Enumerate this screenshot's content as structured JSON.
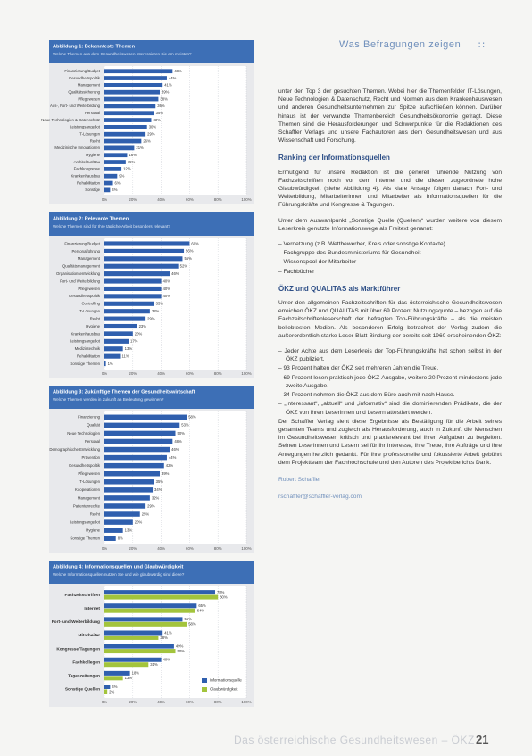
{
  "header": {
    "title": "Was Befragungen zeigen"
  },
  "charts": [
    {
      "title": "Abbildung 1: Bekannteste Themen",
      "subtitle": "Welche Themen aus dem Gesundheitswesen interessieren Sie am meisten?",
      "categories": [
        "Finanzierung/Budget",
        "Gesundheitspolitik",
        "Management",
        "Qualitätssicherung",
        "Pflegewesen",
        "Aus-, Fort- und Weiterbildung",
        "Personal",
        "Neue Technologien & Datenschutz",
        "Leistungsangebot",
        "IT-Lösungen",
        "Recht",
        "Medizinische Innovationen",
        "Hygiene",
        "Architektur/Bau",
        "Fachkongresse",
        "Krankenhausbau",
        "Rehabilitation",
        "Sonstige"
      ],
      "series": [
        {
          "color": "#2f5fae",
          "values": [
            48,
            44,
            41,
            39,
            38,
            36,
            35,
            33,
            30,
            29,
            26,
            21,
            16,
            15,
            12,
            9,
            6,
            4
          ],
          "value_labels": [
            "48%",
            "44%",
            "41%",
            "39%",
            "38%",
            "36%",
            "35%",
            "33%",
            "30%",
            "29%",
            "26%",
            "21%",
            "16%",
            "15%",
            "12%",
            "9%",
            "6%",
            "4%"
          ]
        }
      ],
      "xlim": [
        0,
        100
      ],
      "xticks": [
        {
          "value": 0,
          "label": "0%"
        },
        {
          "value": 20,
          "label": "20%"
        },
        {
          "value": 40,
          "label": "40%"
        },
        {
          "value": 60,
          "label": "60%"
        },
        {
          "value": 80,
          "label": "80%"
        },
        {
          "value": 100,
          "label": "100%"
        }
      ]
    },
    {
      "title": "Abbildung 2: Relevante Themen",
      "subtitle": "Welche Themen sind für Ihre tägliche Arbeit besonders relevant?",
      "categories": [
        "Finanzierung/Budget",
        "Personalführung",
        "Management",
        "Qualitätsmanagement",
        "Organisationsentwicklung",
        "Fort- und Weiterbildung",
        "Pflegewesen",
        "Gesundheitspolitik",
        "Controlling",
        "IT-Lösungen",
        "Recht",
        "Hygiene",
        "Krankenhausbau",
        "Leistungsangebot",
        "Medizintechnik",
        "Rehabilitation",
        "Sonstige Themen"
      ],
      "series": [
        {
          "color": "#2f5fae",
          "values": [
            60,
            56,
            55,
            52,
            46,
            40,
            40,
            40,
            35,
            32,
            29,
            23,
            20,
            17,
            13,
            11,
            1
          ],
          "value_labels": [
            "60%",
            "56%",
            "55%",
            "52%",
            "46%",
            "40%",
            "40%",
            "40%",
            "35%",
            "32%",
            "29%",
            "23%",
            "20%",
            "17%",
            "13%",
            "11%",
            "1%"
          ]
        }
      ],
      "xlim": [
        0,
        100
      ],
      "xticks": [
        {
          "value": 0,
          "label": "0%"
        },
        {
          "value": 20,
          "label": "20%"
        },
        {
          "value": 40,
          "label": "40%"
        },
        {
          "value": 60,
          "label": "60%"
        },
        {
          "value": 80,
          "label": "80%"
        },
        {
          "value": 100,
          "label": "100%"
        }
      ]
    },
    {
      "title": "Abbildung 3: Zukünftige Themen der Gesundheitswirtschaft",
      "subtitle": "Welche Themen werden in Zukunft an Bedeutung gewinnen?",
      "categories": [
        "Finanzierung",
        "Qualität",
        "Neue Technologien",
        "Personal",
        "Demographische Entwicklung",
        "Prävention",
        "Gesundheitspolitik",
        "Pflegewesen",
        "IT-Lösungen",
        "Kooperationen",
        "Management",
        "Patientenrechte",
        "Recht",
        "Leistungsangebot",
        "Hygiene",
        "Sonstige Themen"
      ],
      "series": [
        {
          "color": "#2f5fae",
          "values": [
            58,
            53,
            50,
            48,
            46,
            44,
            42,
            39,
            35,
            34,
            32,
            29,
            25,
            20,
            13,
            8
          ],
          "value_labels": [
            "58%",
            "53%",
            "50%",
            "48%",
            "46%",
            "44%",
            "42%",
            "39%",
            "35%",
            "34%",
            "32%",
            "29%",
            "25%",
            "20%",
            "13%",
            "8%"
          ]
        }
      ],
      "xlim": [
        0,
        100
      ],
      "xticks": [
        {
          "value": 0,
          "label": "0%"
        },
        {
          "value": 20,
          "label": "20%"
        },
        {
          "value": 40,
          "label": "40%"
        },
        {
          "value": 60,
          "label": "60%"
        },
        {
          "value": 80,
          "label": "80%"
        },
        {
          "value": 100,
          "label": "100%"
        }
      ]
    },
    {
      "title": "Abbildung 4: Informationsquellen und Glaubwürdigkeit",
      "subtitle": "Welche Informationsquellen nutzen Sie und wie glaubwürdig sind diese?",
      "categories": [
        "Fachzeitschriften",
        "Internet",
        "Fort- und Weiterbildung",
        "Mitarbeiter",
        "Kongresse/Tagungen",
        "Fachkollegen",
        "Tageszeitungen",
        "Sonstige Quellen"
      ],
      "series": [
        {
          "name": "Informationsquelle",
          "color": "#2f5fae",
          "values": [
            78,
            65,
            55,
            41,
            49,
            40,
            18,
            4
          ],
          "value_labels": [
            "78%",
            "65%",
            "55%",
            "41%",
            "49%",
            "40%",
            "18%",
            "4%"
          ]
        },
        {
          "name": "Glaubwürdigkeit",
          "color": "#a3c43c",
          "values": [
            80,
            64,
            58,
            38,
            50,
            31,
            13,
            2
          ],
          "value_labels": [
            "80%",
            "64%",
            "58%",
            "38%",
            "50%",
            "31%",
            "13%",
            "2%"
          ]
        }
      ],
      "xlim": [
        0,
        100
      ],
      "xticks": [
        {
          "value": 0,
          "label": "0%"
        },
        {
          "value": 20,
          "label": "20%"
        },
        {
          "value": 40,
          "label": "40%"
        },
        {
          "value": 60,
          "label": "60%"
        },
        {
          "value": 80,
          "label": "80%"
        },
        {
          "value": 100,
          "label": "100%"
        }
      ],
      "legend": "bottom-right"
    }
  ],
  "article": [
    {
      "p": "unter den Top 3 der gesuchten Themen. Wobei hier die Themenfelder IT-Lösungen, Neue Technologien & Datenschutz, Recht und Normen aus dem Krankenhauswesen und anderen Gesundheitsunternehmen zur Spitze aufschließen können. Darüber hinaus ist der verwandte Themenbereich Gesundheitsökonomie gefragt. Diese Themen sind die Herausforderungen und Schwerpunkte für die Redaktionen des Schaffler Verlags und unsere Fachautoren aus dem Gesundheitswesen und aus Wissenschaft und Forschung."
    },
    {
      "h": "Ranking der Informationsquellen"
    },
    {
      "p": "Ermutigend für unsere Redaktion ist die generell führende Nutzung von Fachzeitschriften noch vor dem Internet und die diesen zugeordnete hohe Glaubwürdigkeit (siehe Abbildung 4). Als klare Ansage folgen danach Fort- und Weiterbildung, Mitarbeiterinnen und Mitarbeiter als Informationsquellen für die Führungskräfte und Kongresse & Tagungen."
    },
    {
      "p": "Unter dem Auswahlpunkt „Sonstige Quelle (Quellen)“ wurden weitere von diesem Leserkreis genutzte Informationswege als Freitext genannt:"
    },
    {
      "li": "Vernetzung (z.B. Wettbewerber, Kreis oder sonstige Kontakte)"
    },
    {
      "li": "Fachgruppe des Bundesministeriums für Gesundheit"
    },
    {
      "li": "Wissenspool der Mitarbeiter"
    },
    {
      "li": "Fachbücher"
    },
    {
      "h": "ÖKZ und QUALITAS als Marktführer"
    },
    {
      "p": "Unter den allgemeinen Fachzeitschriften für das österreichische Gesundheitswesen erreichen ÖKZ und QUALITAS mit über 69 Prozent Nutzungsquote – bezogen auf die Fachzeitschriftenleserschaft der befragten Top-Führungskräfte – als die meisten beliebtesten Medien. Als besonderen Erfolg betrachtet der Verlag zudem die außerordentlich starke Leser-Blatt-Bindung der bereits seit 1960 erscheinenden ÖKZ:"
    },
    {
      "li": "Jeder Achte aus dem Leserkreis der Top-Führungskräfte hat schon selbst in der ÖKZ publiziert."
    },
    {
      "li": "93 Prozent halten der ÖKZ seit mehreren Jahren die Treue."
    },
    {
      "li": "69 Prozent lesen praktisch jede ÖKZ-Ausgabe, weitere 20 Prozent mindestens jede zweite Ausgabe."
    },
    {
      "li": "34 Prozent nehmen die ÖKZ aus dem Büro auch mit nach Hause."
    },
    {
      "li": "„Interessant“, „aktuell“ und „informativ“ sind die dominierenden Prädikate, die der ÖKZ von ihren Leserinnen und Lesern attestiert werden."
    },
    {
      "p": "Der Schaffler Verlag sieht diese Ergebnisse als Bestätigung für die Arbeit seines gesamten Teams und zugleich als Herausforderung, auch in Zukunft die Menschen im Gesundheitswesen kritisch und praxisrelevant bei ihren Aufgaben zu begleiten. Seinen Leserinnen und Lesern sei für ihr Interesse, ihre Treue, ihre Aufträge und ihre Anregungen herzlich gedankt. Für ihre professionelle und fokussierte Arbeit gebührt dem Projektteam der Fachhochschule und den Autoren des Projektberichts Dank."
    },
    {
      "sig": "Robert Schaffler"
    },
    {
      "sig": "rschaffler@schaffler-verlag.com"
    }
  ],
  "footer": {
    "title": "Das österreichische Gesundheitswesen – ÖKZ",
    "page": "21"
  }
}
